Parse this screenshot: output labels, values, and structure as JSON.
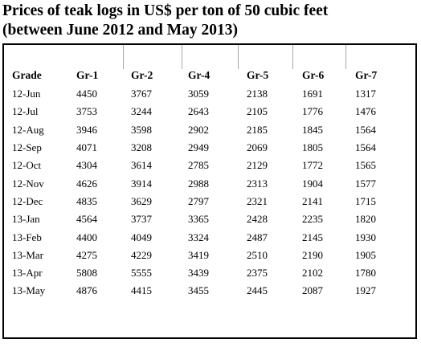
{
  "chart_data": {
    "type": "table",
    "title": "Prices of teak logs in US$ per ton of 50 cubic feet",
    "subtitle": "(between June 2012 and May 2013)",
    "columns": [
      "Grade",
      "Gr-1",
      "Gr-2",
      "Gr-4",
      "Gr-5",
      "Gr-6",
      "Gr-7"
    ],
    "rows": [
      [
        "12-Jun",
        "4450",
        "3767",
        "3059",
        "2138",
        "1691",
        "1317"
      ],
      [
        "12-Jul",
        "3753",
        "3244",
        "2643",
        "2105",
        "1776",
        "1476"
      ],
      [
        "12-Aug",
        "3946",
        "3598",
        "2902",
        "2185",
        "1845",
        "1564"
      ],
      [
        "12-Sep",
        "4071",
        "3208",
        "2949",
        "2069",
        "1805",
        "1564"
      ],
      [
        "12-Oct",
        "4304",
        "3614",
        "2785",
        "2129",
        "1772",
        "1565"
      ],
      [
        "12-Nov",
        "4626",
        "3914",
        "2988",
        "2313",
        "1904",
        "1577"
      ],
      [
        "12-Dec",
        "4835",
        "3629",
        "2797",
        "2321",
        "2141",
        "1715"
      ],
      [
        "13-Jan",
        "4564",
        "3737",
        "3365",
        "2428",
        "2235",
        "1820"
      ],
      [
        "13-Feb",
        "4400",
        "4049",
        "3324",
        "2487",
        "2145",
        "1930"
      ],
      [
        "13-Mar",
        "4275",
        "4229",
        "3419",
        "2510",
        "2190",
        "1905"
      ],
      [
        "13-Apr",
        "5808",
        "5555",
        "3439",
        "2375",
        "2102",
        "1780"
      ],
      [
        "13-May",
        "4876",
        "4415",
        "3455",
        "2445",
        "2087",
        "1927"
      ]
    ]
  }
}
